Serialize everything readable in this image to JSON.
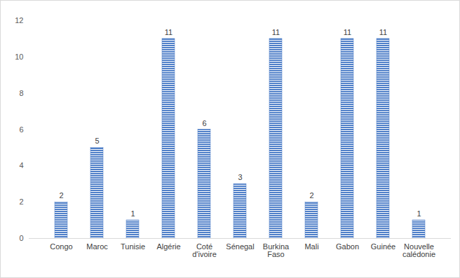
{
  "chart_data": {
    "type": "bar",
    "categories": [
      "Congo",
      "Maroc",
      "Tunisie",
      "Algérie",
      "Coté d'ivoire",
      "Sénegal",
      "Burkina Faso",
      "Mali",
      "Gabon",
      "Guinée",
      "Nouvelle calédonie"
    ],
    "values": [
      2,
      5,
      1,
      11,
      6,
      3,
      11,
      2,
      11,
      11,
      1
    ],
    "color": "#4f7fc8",
    "ylim": [
      0,
      12
    ],
    "yticks": [
      0,
      2,
      4,
      6,
      8,
      10,
      12
    ],
    "grid": false,
    "data_labels": true
  }
}
